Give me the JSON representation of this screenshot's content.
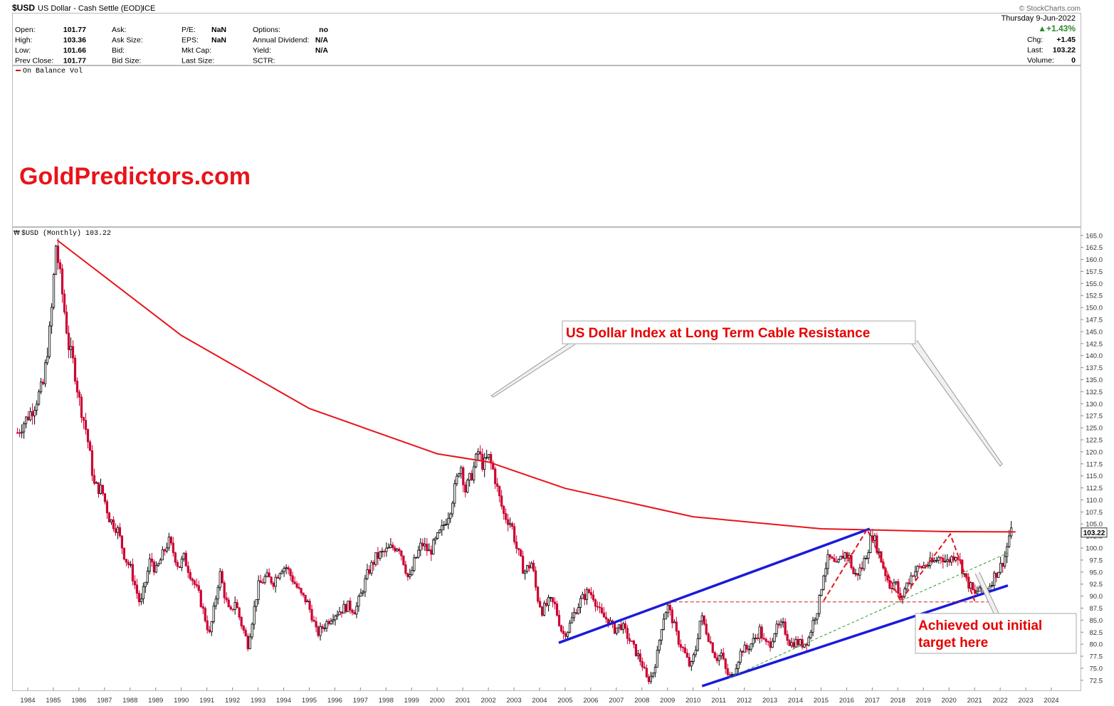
{
  "header": {
    "symbol": "$USD",
    "name": "US Dollar - Cash Settle (EOD)",
    "exchange": "ICE",
    "credit": "© StockCharts.com",
    "date": "Thursday  9-Jun-2022",
    "pct_change": "▲+1.43%",
    "right_stats": [
      {
        "label": "Chg:",
        "value": "+1.45"
      },
      {
        "label": "Last:",
        "value": "103.22"
      },
      {
        "label": "Volume:",
        "value": "0"
      }
    ],
    "stats_col1": [
      {
        "label": "Open:",
        "value": "101.77"
      },
      {
        "label": "High:",
        "value": "103.36"
      },
      {
        "label": "Low:",
        "value": "101.66"
      },
      {
        "label": "Prev Close:",
        "value": "101.77"
      }
    ],
    "stats_col2": [
      {
        "label": "Ask:",
        "value": ""
      },
      {
        "label": "Ask Size:",
        "value": ""
      },
      {
        "label": "Bid:",
        "value": ""
      },
      {
        "label": "Bid Size:",
        "value": ""
      }
    ],
    "stats_col3": [
      {
        "label": "P/E:",
        "value": "NaN"
      },
      {
        "label": "EPS:",
        "value": "NaN"
      },
      {
        "label": "Mkt Cap:",
        "value": ""
      },
      {
        "label": "Last Size:",
        "value": ""
      }
    ],
    "stats_col4": [
      {
        "label": "Options:",
        "value": "no"
      },
      {
        "label": "Annual Dividend:",
        "value": "N/A"
      },
      {
        "label": "Yield:",
        "value": "N/A"
      },
      {
        "label": "SCTR:",
        "value": ""
      }
    ]
  },
  "indicator_label": "On Balance Vol",
  "watermark": "GoldPredictors.com",
  "price_legend": "$USD (Monthly) 103.22",
  "colors": {
    "red_line": "#e8141a",
    "blue_line": "#1a1adb",
    "green_dash": "#2ca02c",
    "candle_up": "#000000",
    "candle_down": "#cc0033",
    "annotation_text": "#e60000"
  },
  "annotations": [
    {
      "id": "resistance",
      "text": "US Dollar Index at Long Term Cable Resistance"
    },
    {
      "id": "target",
      "text": "Achieved out initial target here"
    }
  ],
  "chart_data": {
    "type": "candlestick",
    "ylim": [
      71.0,
      166.0
    ],
    "xlim": [
      1983.6,
      2025.0
    ],
    "x_tick_labels": [
      "1984",
      "1985",
      "1986",
      "1987",
      "1988",
      "1989",
      "1990",
      "1991",
      "1992",
      "1993",
      "1994",
      "1995",
      "1996",
      "1997",
      "1998",
      "1999",
      "2000",
      "2001",
      "2002",
      "2003",
      "2004",
      "2005",
      "2006",
      "2007",
      "2008",
      "2009",
      "2010",
      "2011",
      "2012",
      "2013",
      "2014",
      "2015",
      "2016",
      "2017",
      "2018",
      "2019",
      "2020",
      "2021",
      "2022",
      "2023",
      "2024"
    ],
    "y_tick_labels": [
      "72.5",
      "75.0",
      "77.5",
      "80.0",
      "82.5",
      "85.0",
      "87.5",
      "90.0",
      "92.5",
      "95.0",
      "97.5",
      "100.0",
      "102.5",
      "105.0",
      "107.5",
      "110.0",
      "112.5",
      "115.0",
      "117.5",
      "120.0",
      "122.5",
      "125.0",
      "127.5",
      "130.0",
      "132.5",
      "135.0",
      "137.5",
      "140.0",
      "142.5",
      "145.0",
      "147.5",
      "150.0",
      "152.5",
      "155.0",
      "157.5",
      "160.0",
      "162.5",
      "165.0"
    ],
    "last_price_label": "103.22",
    "series": [
      {
        "name": "$USD (Monthly)",
        "type": "candlestick",
        "anchors": [
          [
            1983.6,
            124.0
          ],
          [
            1984.2,
            129.0
          ],
          [
            1984.6,
            134.0
          ],
          [
            1984.9,
            147.0
          ],
          [
            1985.1,
            163.0
          ],
          [
            1985.3,
            155.0
          ],
          [
            1985.6,
            142.0
          ],
          [
            1985.8,
            138.0
          ],
          [
            1986.0,
            131.0
          ],
          [
            1986.3,
            124.0
          ],
          [
            1986.6,
            113.0
          ],
          [
            1986.9,
            112.0
          ],
          [
            1987.2,
            106.0
          ],
          [
            1987.5,
            104.0
          ],
          [
            1987.8,
            98.0
          ],
          [
            1988.0,
            96.0
          ],
          [
            1988.2,
            92.0
          ],
          [
            1988.4,
            88.0
          ],
          [
            1988.6,
            93.0
          ],
          [
            1988.8,
            98.0
          ],
          [
            1989.0,
            95.0
          ],
          [
            1989.3,
            99.0
          ],
          [
            1989.5,
            101.5
          ],
          [
            1989.7,
            99.0
          ],
          [
            1989.9,
            96.0
          ],
          [
            1990.1,
            98.0
          ],
          [
            1990.4,
            94.0
          ],
          [
            1990.7,
            90.0
          ],
          [
            1990.9,
            86.0
          ],
          [
            1991.1,
            82.0
          ],
          [
            1991.3,
            88.0
          ],
          [
            1991.5,
            95.0
          ],
          [
            1991.7,
            90.0
          ],
          [
            1991.9,
            86.0
          ],
          [
            1992.1,
            89.0
          ],
          [
            1992.3,
            85.0
          ],
          [
            1992.6,
            80.0
          ],
          [
            1992.8,
            86.0
          ],
          [
            1993.0,
            92.0
          ],
          [
            1993.3,
            94.0
          ],
          [
            1993.6,
            93.0
          ],
          [
            1993.9,
            96.0
          ],
          [
            1994.1,
            96.0
          ],
          [
            1994.4,
            93.0
          ],
          [
            1994.7,
            90.0
          ],
          [
            1994.9,
            89.0
          ],
          [
            1995.1,
            86.0
          ],
          [
            1995.3,
            82.0
          ],
          [
            1995.6,
            84.0
          ],
          [
            1995.9,
            86.0
          ],
          [
            1996.2,
            87.0
          ],
          [
            1996.5,
            88.0
          ],
          [
            1996.8,
            87.0
          ],
          [
            1997.0,
            90.0
          ],
          [
            1997.3,
            95.0
          ],
          [
            1997.6,
            98.0
          ],
          [
            1997.9,
            99.0
          ],
          [
            1998.2,
            100.0
          ],
          [
            1998.5,
            100.5
          ],
          [
            1998.7,
            97.0
          ],
          [
            1998.9,
            93.0
          ],
          [
            1999.1,
            97.0
          ],
          [
            1999.4,
            101.0
          ],
          [
            1999.7,
            99.0
          ],
          [
            1999.9,
            101.0
          ],
          [
            2000.2,
            104.0
          ],
          [
            2000.5,
            108.0
          ],
          [
            2000.8,
            115.0
          ],
          [
            2000.9,
            118.0
          ],
          [
            2001.1,
            112.0
          ],
          [
            2001.4,
            116.0
          ],
          [
            2001.6,
            120.0
          ],
          [
            2001.8,
            117.0
          ],
          [
            2002.0,
            119.0
          ],
          [
            2002.2,
            116.0
          ],
          [
            2002.4,
            111.0
          ],
          [
            2002.6,
            107.0
          ],
          [
            2002.9,
            105.0
          ],
          [
            2003.1,
            100.0
          ],
          [
            2003.4,
            95.0
          ],
          [
            2003.7,
            97.0
          ],
          [
            2003.9,
            90.0
          ],
          [
            2004.1,
            87.0
          ],
          [
            2004.4,
            89.0
          ],
          [
            2004.6,
            88.0
          ],
          [
            2004.9,
            82.0
          ],
          [
            2005.1,
            83.0
          ],
          [
            2005.4,
            87.0
          ],
          [
            2005.6,
            89.0
          ],
          [
            2005.9,
            91.0
          ],
          [
            2006.1,
            90.0
          ],
          [
            2006.4,
            86.0
          ],
          [
            2006.7,
            85.0
          ],
          [
            2006.9,
            83.0
          ],
          [
            2007.2,
            84.0
          ],
          [
            2007.5,
            81.0
          ],
          [
            2007.8,
            78.0
          ],
          [
            2008.0,
            76.0
          ],
          [
            2008.2,
            72.5
          ],
          [
            2008.4,
            73.5
          ],
          [
            2008.6,
            78.0
          ],
          [
            2008.8,
            85.0
          ],
          [
            2009.0,
            88.0
          ],
          [
            2009.2,
            85.0
          ],
          [
            2009.4,
            81.0
          ],
          [
            2009.6,
            79.0
          ],
          [
            2009.9,
            75.0
          ],
          [
            2010.1,
            79.0
          ],
          [
            2010.3,
            86.0
          ],
          [
            2010.5,
            83.0
          ],
          [
            2010.7,
            80.0
          ],
          [
            2010.9,
            77.0
          ],
          [
            2011.1,
            78.0
          ],
          [
            2011.3,
            74.0
          ],
          [
            2011.5,
            73.0
          ],
          [
            2011.7,
            76.0
          ],
          [
            2011.9,
            79.0
          ],
          [
            2012.1,
            79.0
          ],
          [
            2012.4,
            81.0
          ],
          [
            2012.6,
            83.0
          ],
          [
            2012.8,
            80.0
          ],
          [
            2013.0,
            80.0
          ],
          [
            2013.2,
            83.0
          ],
          [
            2013.5,
            84.0
          ],
          [
            2013.8,
            80.0
          ],
          [
            2014.0,
            80.5
          ],
          [
            2014.3,
            80.0
          ],
          [
            2014.5,
            81.0
          ],
          [
            2014.7,
            85.0
          ],
          [
            2014.9,
            88.0
          ],
          [
            2015.1,
            95.0
          ],
          [
            2015.3,
            98.0
          ],
          [
            2015.6,
            96.0
          ],
          [
            2015.9,
            99.0
          ],
          [
            2016.1,
            98.0
          ],
          [
            2016.3,
            94.0
          ],
          [
            2016.6,
            96.0
          ],
          [
            2016.9,
            101.0
          ],
          [
            2017.0,
            103.0
          ],
          [
            2017.2,
            100.0
          ],
          [
            2017.5,
            95.0
          ],
          [
            2017.7,
            92.0
          ],
          [
            2017.9,
            93.0
          ],
          [
            2018.1,
            89.0
          ],
          [
            2018.3,
            92.0
          ],
          [
            2018.6,
            95.0
          ],
          [
            2018.9,
            96.0
          ],
          [
            2019.1,
            96.5
          ],
          [
            2019.4,
            97.0
          ],
          [
            2019.7,
            98.5
          ],
          [
            2019.9,
            97.0
          ],
          [
            2020.1,
            98.0
          ],
          [
            2020.3,
            99.0
          ],
          [
            2020.5,
            96.0
          ],
          [
            2020.7,
            93.0
          ],
          [
            2020.9,
            91.5
          ],
          [
            2021.0,
            90.0
          ],
          [
            2021.2,
            92.0
          ],
          [
            2021.4,
            90.5
          ],
          [
            2021.6,
            92.5
          ],
          [
            2021.8,
            94.5
          ],
          [
            2022.0,
            96.0
          ],
          [
            2022.2,
            98.5
          ],
          [
            2022.35,
            102.5
          ],
          [
            2022.45,
            103.22
          ]
        ]
      },
      {
        "name": "Long Term Cable Resistance",
        "type": "curve",
        "points": [
          [
            1985.15,
            164.0
          ],
          [
            1990.0,
            144.2
          ],
          [
            1995.0,
            129.0
          ],
          [
            2000.0,
            119.6
          ],
          [
            2002.0,
            117.9
          ],
          [
            2005.0,
            112.4
          ],
          [
            2010.0,
            106.5
          ],
          [
            2015.0,
            104.0
          ],
          [
            2020.0,
            103.4
          ],
          [
            2022.6,
            103.35
          ]
        ]
      },
      {
        "name": "Upper channel",
        "type": "line",
        "points": [
          [
            2004.75,
            80.3
          ],
          [
            2016.9,
            104.0
          ]
        ]
      },
      {
        "name": "Lower channel",
        "type": "line",
        "points": [
          [
            2010.35,
            71.3
          ],
          [
            2022.3,
            92.2
          ]
        ]
      },
      {
        "name": "Support",
        "type": "dashed-line",
        "points": [
          [
            2009.0,
            88.8
          ],
          [
            2021.6,
            88.8
          ]
        ]
      },
      {
        "name": "Trend",
        "type": "dashed-line",
        "points": [
          [
            2011.4,
            73.0
          ],
          [
            2022.3,
            99.0
          ]
        ]
      },
      {
        "name": "Pattern",
        "type": "dashed-zigzag",
        "points": [
          [
            2015.1,
            89.0
          ],
          [
            2016.8,
            103.9
          ],
          [
            2018.1,
            89.0
          ],
          [
            2020.05,
            102.9
          ],
          [
            2021.0,
            89.0
          ]
        ]
      }
    ]
  }
}
